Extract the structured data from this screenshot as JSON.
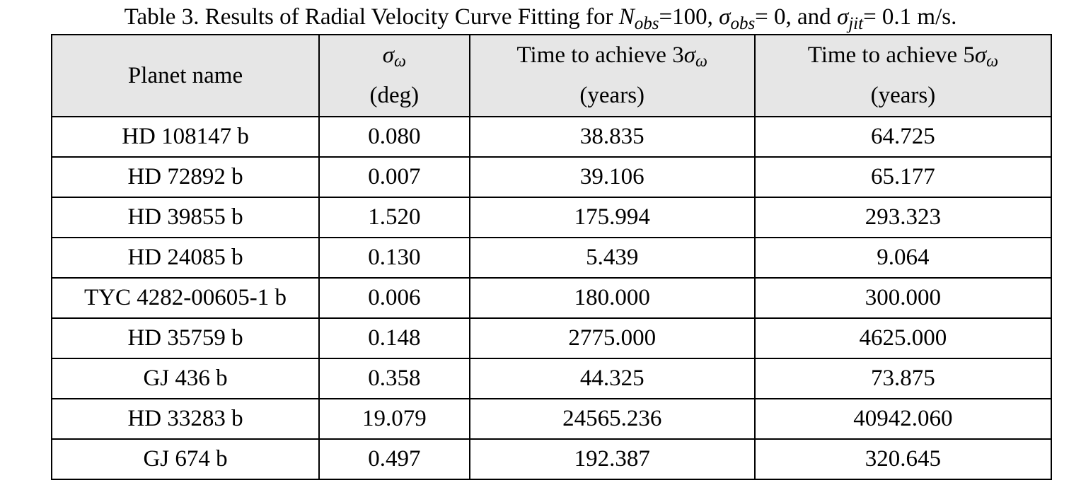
{
  "caption": {
    "prefix": "Table 3. Results of Radial Velocity Curve Fitting for ",
    "n_symbol": "N",
    "n_sub": "obs",
    "n_value": "=100, ",
    "sigma_symbol": "σ",
    "sigma_obs_sub": "obs",
    "sigma_obs_value": "= 0, and ",
    "sigma_jit_sub": "jit",
    "sigma_jit_value": "= 0.1 m/s."
  },
  "table": {
    "headers": {
      "planet": "Planet name",
      "sigma_sym": "σ",
      "sigma_sub": "ω",
      "sigma_unit": "(deg)",
      "t3_prefix": "Time to achieve 3",
      "t3_sym": "σ",
      "t3_sub": "ω",
      "t3_unit": "(years)",
      "t5_prefix": "Time to achieve 5",
      "t5_sym": "σ",
      "t5_sub": "ω",
      "t5_unit": "(years)"
    },
    "rows": [
      {
        "planet": "HD 108147 b",
        "sigma": "0.080",
        "t3": "38.835",
        "t5": "64.725"
      },
      {
        "planet": "HD 72892 b",
        "sigma": "0.007",
        "t3": "39.106",
        "t5": "65.177"
      },
      {
        "planet": "HD 39855 b",
        "sigma": "1.520",
        "t3": "175.994",
        "t5": "293.323"
      },
      {
        "planet": "HD 24085 b",
        "sigma": "0.130",
        "t3": "5.439",
        "t5": "9.064"
      },
      {
        "planet": "TYC 4282-00605-1 b",
        "sigma": "0.006",
        "t3": "180.000",
        "t5": "300.000"
      },
      {
        "planet": "HD 35759 b",
        "sigma": "0.148",
        "t3": "2775.000",
        "t5": "4625.000"
      },
      {
        "planet": "GJ 436 b",
        "sigma": "0.358",
        "t3": "44.325",
        "t5": "73.875"
      },
      {
        "planet": "HD 33283 b",
        "sigma": "19.079",
        "t3": "24565.236",
        "t5": "40942.060"
      },
      {
        "planet": "GJ 674 b",
        "sigma": "0.497",
        "t3": "192.387",
        "t5": "320.645"
      }
    ]
  }
}
